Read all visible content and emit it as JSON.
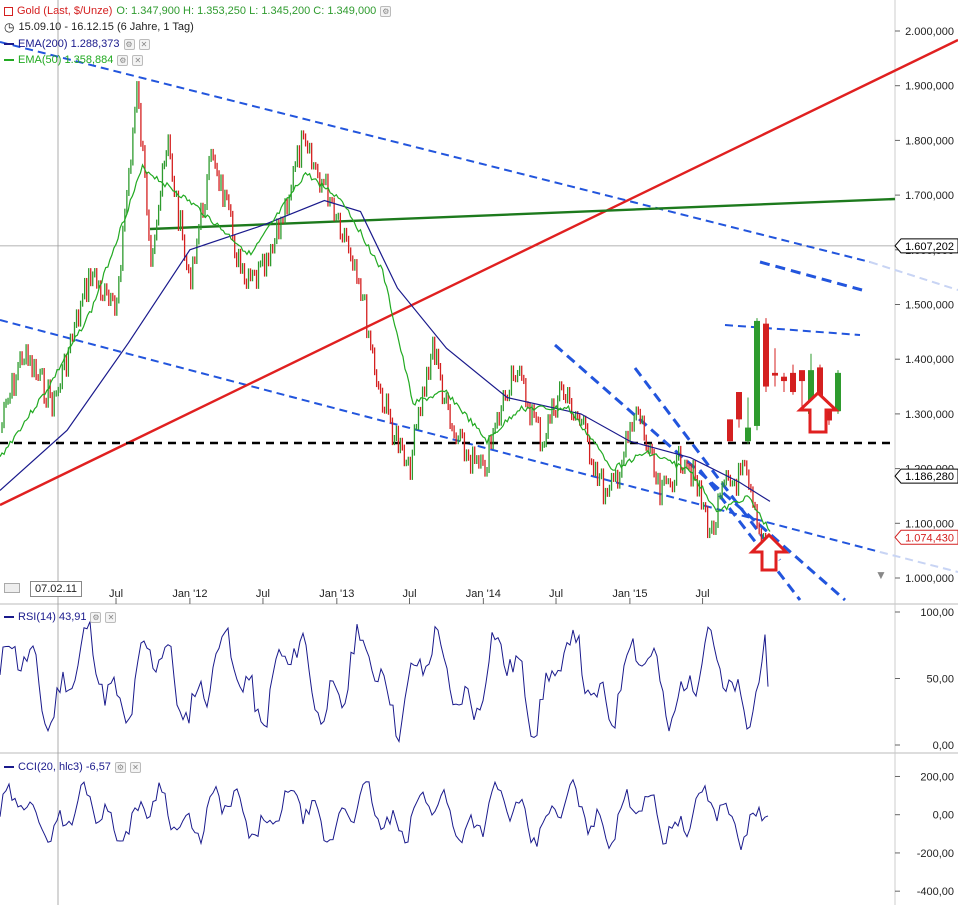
{
  "header": {
    "instrument": "Gold (Last, $/Unze)",
    "ohlc": "O: 1.347,900  H: 1.353,250  L: 1.345,200  C: 1.349,000",
    "range": "15.09.10 - 16.12.15 (6 Jahre, 1 Tag)",
    "ema200": "EMA(200)  1.288,373",
    "ema50": "EMA(50)  1.358,884",
    "rsi": "RSI(14)  43,91",
    "cci": "CCI(20, hlc3)  -6,57",
    "crosshair_date": "07.02.11",
    "colors": {
      "price_up": "#2e9b2e",
      "price_down": "#d42020",
      "ema200": "#1a1a8c",
      "ema50": "#22aa22",
      "trend_blue": "#2255dd",
      "trend_red": "#e02020",
      "support": "#000000"
    }
  },
  "chart_data": [
    {
      "type": "line",
      "title": "Gold (Last, $/Unze)",
      "x_ticks": [
        "Jul",
        "Jan '12",
        "Jul",
        "Jan '13",
        "Jul",
        "Jan '14",
        "Jul",
        "Jan '15",
        "Jul"
      ],
      "y_ticks": [
        "2.000,000",
        "1.900,000",
        "1.800,000",
        "1.700,000",
        "1.600,000",
        "1.500,000",
        "1.400,000",
        "1.300,000",
        "1.200,000",
        "1.100,000",
        "1.000,000"
      ],
      "ylim": [
        975,
        2000
      ],
      "price_labels": {
        "ema_long_level": "1.607,202",
        "support_level": "1.186,280",
        "last_price": "1.074,430"
      },
      "support_value": 1186.28,
      "horizontal_crosshair_value": 1607.2,
      "series": [
        {
          "name": "Gold",
          "points": [
            [
              "2010-09-15",
              1270
            ],
            [
              "2010-11-09",
              1410
            ],
            [
              "2011-01-28",
              1320
            ],
            [
              "2011-04-29",
              1560
            ],
            [
              "2011-06-28",
              1480
            ],
            [
              "2011-08-22",
              1890
            ],
            [
              "2011-09-26",
              1600
            ],
            [
              "2011-11-08",
              1790
            ],
            [
              "2011-12-29",
              1540
            ],
            [
              "2012-02-28",
              1780
            ],
            [
              "2012-05-16",
              1530
            ],
            [
              "2012-07-15",
              1570
            ],
            [
              "2012-10-05",
              1790
            ],
            [
              "2012-12-15",
              1700
            ],
            [
              "2013-02-20",
              1570
            ],
            [
              "2013-04-15",
              1350
            ],
            [
              "2013-06-28",
              1190
            ],
            [
              "2013-08-28",
              1430
            ],
            [
              "2013-10-15",
              1260
            ],
            [
              "2013-12-31",
              1190
            ],
            [
              "2014-03-17",
              1390
            ],
            [
              "2014-05-28",
              1250
            ],
            [
              "2014-07-10",
              1345
            ],
            [
              "2014-08-29",
              1290
            ],
            [
              "2014-11-06",
              1140
            ],
            [
              "2015-01-22",
              1305
            ],
            [
              "2015-03-17",
              1145
            ],
            [
              "2015-05-18",
              1230
            ],
            [
              "2015-07-24",
              1080
            ],
            [
              "2015-08-24",
              1165
            ],
            [
              "2015-10-14",
              1190
            ],
            [
              "2015-11-19",
              1075
            ],
            [
              "2015-12-16",
              1074
            ]
          ]
        },
        {
          "name": "EMA(50)",
          "points": [
            [
              "2010-09-15",
              1220
            ],
            [
              "2011-01-15",
              1350
            ],
            [
              "2011-05-01",
              1490
            ],
            [
              "2011-09-05",
              1750
            ],
            [
              "2012-01-15",
              1680
            ],
            [
              "2012-06-01",
              1590
            ],
            [
              "2012-10-15",
              1740
            ],
            [
              "2013-01-15",
              1690
            ],
            [
              "2013-04-25",
              1560
            ],
            [
              "2013-07-10",
              1320
            ],
            [
              "2013-10-01",
              1340
            ],
            [
              "2014-01-10",
              1250
            ],
            [
              "2014-04-01",
              1310
            ],
            [
              "2014-08-01",
              1310
            ],
            [
              "2014-11-20",
              1200
            ],
            [
              "2015-02-15",
              1230
            ],
            [
              "2015-06-01",
              1195
            ],
            [
              "2015-08-10",
              1120
            ],
            [
              "2015-10-20",
              1150
            ],
            [
              "2015-12-16",
              1085
            ]
          ]
        },
        {
          "name": "EMA(200)",
          "points": [
            [
              "2010-09-15",
              1160
            ],
            [
              "2011-03-01",
              1270
            ],
            [
              "2011-08-01",
              1430
            ],
            [
              "2012-01-01",
              1600
            ],
            [
              "2012-07-01",
              1645
            ],
            [
              "2012-12-01",
              1690
            ],
            [
              "2013-03-01",
              1670
            ],
            [
              "2013-06-01",
              1530
            ],
            [
              "2013-10-01",
              1420
            ],
            [
              "2014-03-01",
              1330
            ],
            [
              "2014-09-01",
              1300
            ],
            [
              "2015-01-01",
              1250
            ],
            [
              "2015-06-01",
              1220
            ],
            [
              "2015-10-01",
              1175
            ],
            [
              "2015-12-16",
              1140
            ]
          ]
        }
      ],
      "candles": [
        {
          "o": 1250,
          "h": 1290,
          "l": 1250,
          "c": 1290,
          "up": false
        },
        {
          "o": 1290,
          "h": 1340,
          "l": 1275,
          "c": 1340,
          "up": false
        },
        {
          "o": 1250,
          "h": 1330,
          "l": 1245,
          "c": 1275,
          "up": true
        },
        {
          "o": 1278,
          "h": 1475,
          "l": 1270,
          "c": 1470,
          "up": true
        },
        {
          "o": 1465,
          "h": 1475,
          "l": 1340,
          "c": 1350,
          "up": false
        },
        {
          "o": 1375,
          "h": 1420,
          "l": 1350,
          "c": 1370,
          "up": false
        },
        {
          "o": 1368,
          "h": 1375,
          "l": 1340,
          "c": 1360,
          "up": false
        },
        {
          "o": 1375,
          "h": 1390,
          "l": 1335,
          "c": 1340,
          "up": false
        },
        {
          "o": 1360,
          "h": 1370,
          "l": 1310,
          "c": 1380,
          "up": false
        },
        {
          "o": 1300,
          "h": 1410,
          "l": 1300,
          "c": 1380,
          "up": true
        },
        {
          "o": 1385,
          "h": 1390,
          "l": 1295,
          "c": 1300,
          "up": false
        },
        {
          "o": 1305,
          "h": 1320,
          "l": 1280,
          "c": 1288,
          "up": false
        },
        {
          "o": 1305,
          "h": 1380,
          "l": 1300,
          "c": 1375,
          "up": true
        }
      ]
    },
    {
      "type": "line",
      "title": "RSI(14)",
      "y_ticks": [
        "100,00",
        "50,00",
        "0,00"
      ],
      "ylim": [
        0,
        100
      ],
      "series": [
        {
          "name": "RSI(14)",
          "last": 43.91
        }
      ]
    },
    {
      "type": "line",
      "title": "CCI(20, hlc3)",
      "y_ticks": [
        "200,00",
        "0,00",
        "-200,00",
        "-400,00"
      ],
      "ylim": [
        -420,
        260
      ],
      "series": [
        {
          "name": "CCI(20, hlc3)",
          "last": -6.57
        }
      ]
    }
  ]
}
